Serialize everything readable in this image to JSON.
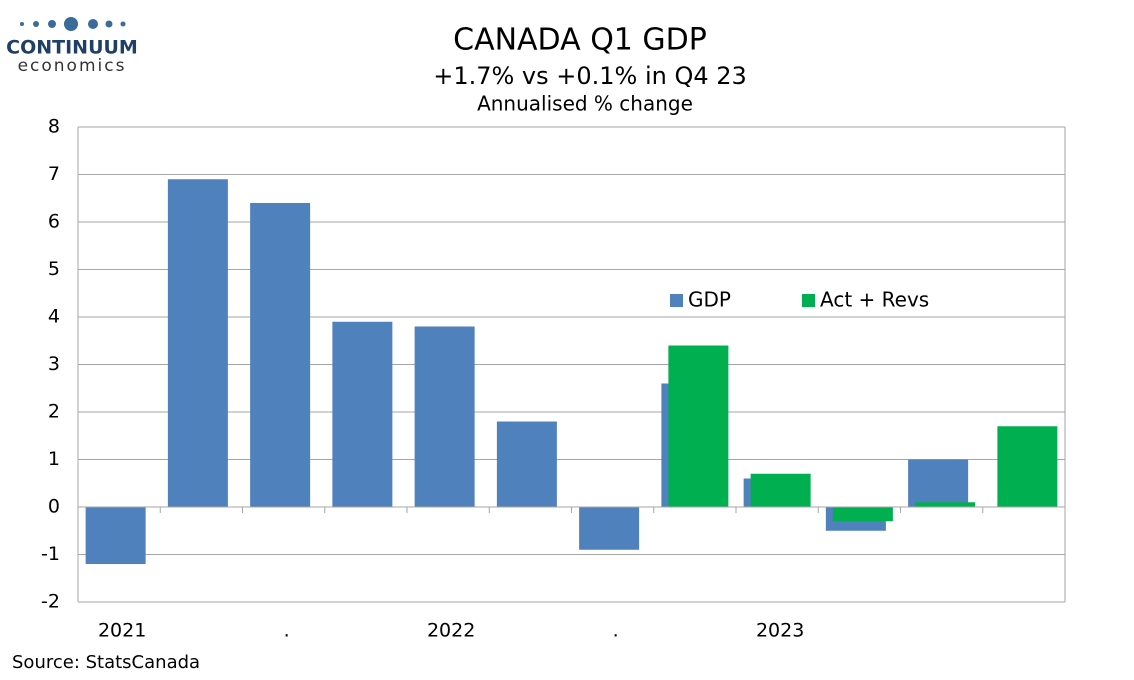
{
  "logo": {
    "name": "CONTINUUM",
    "tagline": "economics"
  },
  "source": "Source: StatsCanada",
  "chart_data": {
    "type": "bar",
    "title": "CANADA Q1 GDP",
    "subtitle": "+1.7% vs +0.1% in Q4 23",
    "ylabel": "Annualised % change",
    "categories": [
      "2021",
      null,
      ".",
      null,
      "2022",
      null,
      ".",
      null,
      "2023",
      null,
      null,
      null
    ],
    "series": [
      {
        "name": "GDP",
        "color": "#4f81bd",
        "values": [
          -1.2,
          6.9,
          6.4,
          3.9,
          3.8,
          1.8,
          -0.9,
          2.6,
          0.6,
          -0.5,
          1.0,
          null
        ]
      },
      {
        "name": "Act + Revs",
        "color": "#00b050",
        "values": [
          null,
          null,
          null,
          null,
          null,
          null,
          null,
          3.4,
          0.7,
          -0.3,
          0.1,
          1.7
        ]
      }
    ],
    "ylim": [
      -2,
      8
    ],
    "yticks": [
      -2,
      -1,
      0,
      1,
      2,
      3,
      4,
      5,
      6,
      7,
      8
    ],
    "grid": true
  }
}
